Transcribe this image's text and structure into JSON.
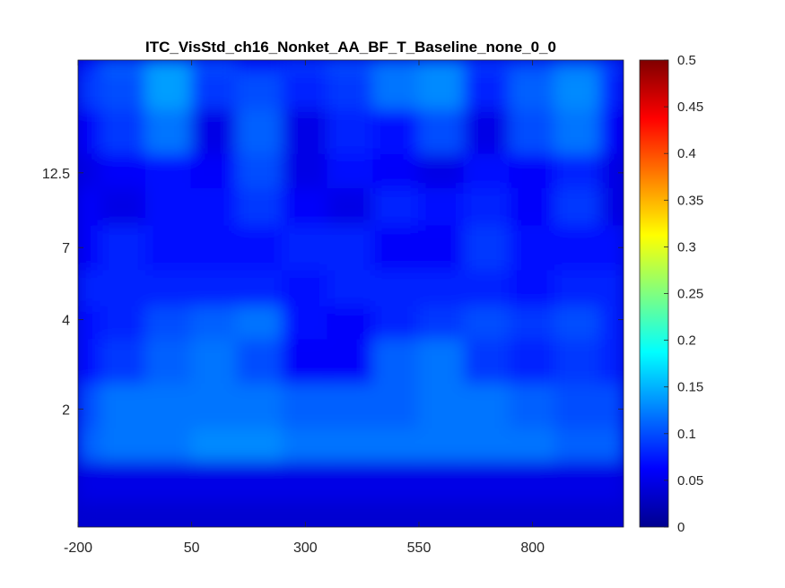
{
  "chart_data": {
    "type": "heatmap",
    "title": "ITC_VisStd_ch16_Nonket_AA_BF_T_Baseline_none_0_0",
    "xlabel": "",
    "ylabel": "",
    "x_range": [
      -200,
      1000
    ],
    "x_ticks": [
      -200,
      50,
      300,
      550,
      800
    ],
    "x_tick_labels": [
      "-200",
      "50",
      "300",
      "550",
      "800"
    ],
    "y_scale": "log",
    "y_range": [
      0.8,
      30
    ],
    "y_ticks": [
      2,
      4,
      7,
      12.5
    ],
    "y_tick_labels": [
      "2",
      "4",
      "7",
      "12.5"
    ],
    "colormap": "jet",
    "clim": [
      0,
      0.5
    ],
    "colorbar_ticks": [
      0,
      0.05,
      0.1,
      0.15,
      0.2,
      0.25,
      0.3,
      0.35,
      0.4,
      0.45,
      0.5
    ],
    "colorbar_tick_labels": [
      "0",
      "0.05",
      "0.1",
      "0.15",
      "0.2",
      "0.25",
      "0.3",
      "0.35",
      "0.4",
      "0.45",
      "0.5"
    ],
    "times": [
      -200,
      -100,
      0,
      100,
      200,
      300,
      400,
      500,
      600,
      700,
      800,
      900,
      1000
    ],
    "frequencies": [
      0.8,
      1.2,
      1.5,
      2,
      3,
      4,
      5,
      7,
      10,
      12.5,
      17,
      25,
      30
    ],
    "values": [
      [
        0.04,
        0.04,
        0.04,
        0.04,
        0.04,
        0.04,
        0.04,
        0.04,
        0.04,
        0.04,
        0.04,
        0.04,
        0.04
      ],
      [
        0.05,
        0.05,
        0.05,
        0.05,
        0.05,
        0.05,
        0.05,
        0.05,
        0.05,
        0.05,
        0.05,
        0.05,
        0.05
      ],
      [
        0.11,
        0.12,
        0.12,
        0.13,
        0.13,
        0.12,
        0.12,
        0.12,
        0.12,
        0.12,
        0.12,
        0.11,
        0.11
      ],
      [
        0.1,
        0.12,
        0.12,
        0.12,
        0.12,
        0.11,
        0.11,
        0.11,
        0.12,
        0.12,
        0.11,
        0.1,
        0.1
      ],
      [
        0.07,
        0.09,
        0.11,
        0.12,
        0.1,
        0.06,
        0.06,
        0.11,
        0.12,
        0.09,
        0.08,
        0.09,
        0.08
      ],
      [
        0.07,
        0.08,
        0.1,
        0.11,
        0.12,
        0.07,
        0.06,
        0.08,
        0.09,
        0.1,
        0.09,
        0.1,
        0.08
      ],
      [
        0.08,
        0.08,
        0.08,
        0.08,
        0.08,
        0.07,
        0.08,
        0.08,
        0.08,
        0.08,
        0.07,
        0.08,
        0.08
      ],
      [
        0.06,
        0.08,
        0.07,
        0.07,
        0.07,
        0.08,
        0.08,
        0.06,
        0.06,
        0.09,
        0.07,
        0.07,
        0.07
      ],
      [
        0.06,
        0.05,
        0.07,
        0.07,
        0.09,
        0.06,
        0.05,
        0.08,
        0.07,
        0.08,
        0.06,
        0.09,
        0.05
      ],
      [
        0.05,
        0.06,
        0.07,
        0.06,
        0.1,
        0.05,
        0.07,
        0.06,
        0.05,
        0.07,
        0.06,
        0.08,
        0.05
      ],
      [
        0.06,
        0.09,
        0.12,
        0.05,
        0.11,
        0.05,
        0.08,
        0.07,
        0.1,
        0.05,
        0.1,
        0.12,
        0.06
      ],
      [
        0.09,
        0.1,
        0.14,
        0.09,
        0.1,
        0.08,
        0.09,
        0.12,
        0.13,
        0.08,
        0.11,
        0.13,
        0.08
      ],
      [
        0.08,
        0.11,
        0.14,
        0.1,
        0.08,
        0.09,
        0.1,
        0.12,
        0.13,
        0.09,
        0.1,
        0.12,
        0.09
      ]
    ]
  }
}
